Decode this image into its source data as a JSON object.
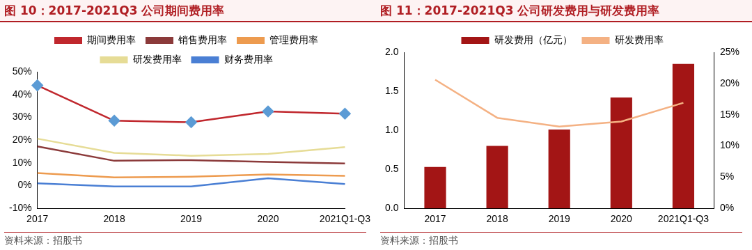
{
  "chart_data": [
    {
      "type": "line",
      "title": "图 10：2017-2021Q3 公司期间费用率",
      "categories": [
        "2017",
        "2018",
        "2019",
        "2020",
        "2021Q1-Q3"
      ],
      "series": [
        {
          "name": "期间费用率",
          "color": "#c0272d",
          "marker": "diamond",
          "values": [
            44,
            28.5,
            27.8,
            32.6,
            31.6
          ]
        },
        {
          "name": "销售费用率",
          "color": "#8b3a3a",
          "values": [
            17.2,
            10.9,
            11.2,
            10.4,
            9.7
          ]
        },
        {
          "name": "管理费用率",
          "color": "#ed9b4f",
          "values": [
            5.5,
            3.6,
            3.9,
            4.9,
            4.3
          ]
        },
        {
          "name": "研发费用率",
          "color": "#e6dc96",
          "values": [
            20.6,
            14.4,
            13.1,
            13.9,
            16.9
          ]
        },
        {
          "name": "财务费用率",
          "color": "#4a7fd4",
          "values": [
            1.0,
            -0.4,
            -0.4,
            3.2,
            0.7
          ]
        }
      ],
      "ylim": [
        -10,
        50
      ],
      "yticks": [
        {
          "value": -10,
          "label": "-10%"
        },
        {
          "value": 0,
          "label": "0%"
        },
        {
          "value": 10,
          "label": "10%"
        },
        {
          "value": 20,
          "label": "20%"
        },
        {
          "value": 30,
          "label": "30%"
        },
        {
          "value": 40,
          "label": "40%"
        },
        {
          "value": 50,
          "label": "50%"
        }
      ],
      "legend": "top",
      "grid": false,
      "annotations": [
        "资料来源：招股书"
      ]
    },
    {
      "type": "bar",
      "title": "图 11：2017-2021Q3 公司研发费用与研发费用率",
      "categories": [
        "2017",
        "2018",
        "2019",
        "2020",
        "2021Q1-Q3"
      ],
      "series": [
        {
          "name": "研发费用（亿元）",
          "color": "#a31515",
          "values": [
            0.53,
            0.8,
            1.01,
            1.42,
            1.85
          ]
        },
        {
          "name": "研发费用率",
          "type": "line",
          "axis": "y2",
          "color": "#f4b183",
          "values": [
            20.6,
            14.5,
            13.1,
            13.9,
            16.9
          ]
        }
      ],
      "ylim": [
        0,
        2
      ],
      "yticks": [
        {
          "value": 0,
          "label": "0.0"
        },
        {
          "value": 0.5,
          "label": "0.5"
        },
        {
          "value": 1,
          "label": "1.0"
        },
        {
          "value": 1.5,
          "label": "1.5"
        },
        {
          "value": 2,
          "label": "2.0"
        }
      ],
      "y2lim": [
        0,
        25
      ],
      "y2ticks": [
        {
          "value": 0,
          "label": "0%"
        },
        {
          "value": 5,
          "label": "5%"
        },
        {
          "value": 10,
          "label": "10%"
        },
        {
          "value": 15,
          "label": "15%"
        },
        {
          "value": 20,
          "label": "20%"
        },
        {
          "value": 25,
          "label": "25%"
        }
      ],
      "legend": "top",
      "grid": false,
      "annotations": [
        "资料来源：招股书"
      ]
    }
  ]
}
